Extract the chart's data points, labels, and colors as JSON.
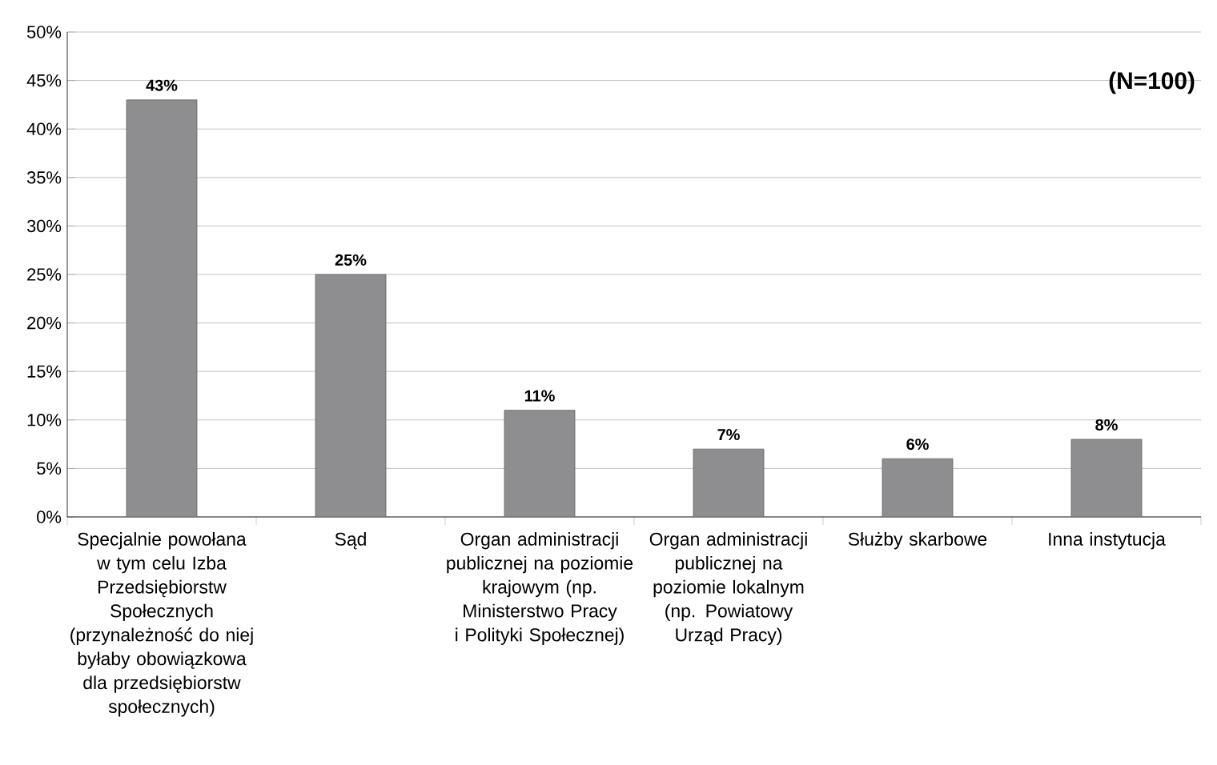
{
  "chart_data": {
    "type": "bar",
    "categories": [
      "Specjalnie powołana w tym celu Izba Przedsiębiorstw Społecznych (przynależność do niej byłaby obowiązkowa dla przedsiębiorstw społecznych)",
      "Sąd",
      "Organ administracji publicznej na poziomie krajowym (np. Ministerstwo Pracy i Polityki Społecznej)",
      "Organ administracji publicznej na poziomie lokalnym (np. Powiatowy Urząd Pracy)",
      "Służby skarbowe",
      "Inna instytucja"
    ],
    "values": [
      43,
      25,
      11,
      7,
      6,
      8
    ],
    "value_labels": [
      "43%",
      "25%",
      "11%",
      "7%",
      "6%",
      "8%"
    ],
    "color": "#8e8e90",
    "ylim": [
      0,
      50
    ],
    "yticks": [
      {
        "value": 0,
        "label": "0%"
      },
      {
        "value": 5,
        "label": "5%"
      },
      {
        "value": 10,
        "label": "10%"
      },
      {
        "value": 15,
        "label": "15%"
      },
      {
        "value": 20,
        "label": "20%"
      },
      {
        "value": 25,
        "label": "25%"
      },
      {
        "value": 30,
        "label": "30%"
      },
      {
        "value": 35,
        "label": "35%"
      },
      {
        "value": 40,
        "label": "40%"
      },
      {
        "value": 45,
        "label": "45%"
      },
      {
        "value": 50,
        "label": "50%"
      }
    ],
    "grid": "y",
    "annotations": [
      "(N=100)"
    ]
  }
}
